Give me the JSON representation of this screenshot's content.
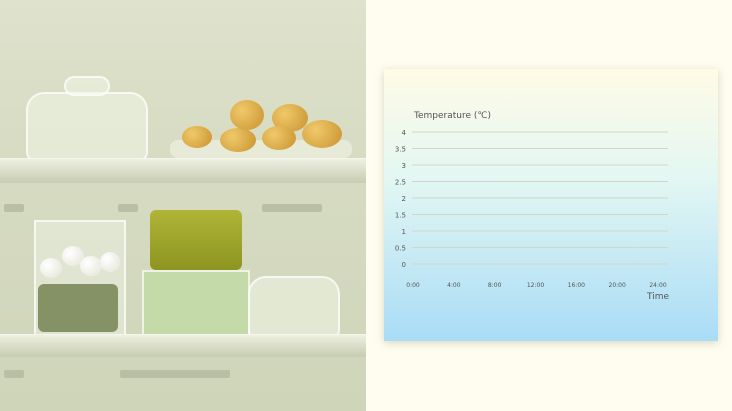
{
  "photo": {
    "description_label": ""
  },
  "chart_data": {
    "type": "line",
    "ylabel": "Temperature (℃)",
    "xlabel": "Time",
    "yticks": [
      "0",
      "0.5",
      "1",
      "1.5",
      "2",
      "2.5",
      "3",
      "3.5",
      "4"
    ],
    "xticks": [
      "0:00",
      "4:00",
      "8:00",
      "12:00",
      "16:00",
      "20:00",
      "24:00"
    ],
    "ylim": [
      0,
      4
    ],
    "xlim": [
      "0:00",
      "24:00"
    ],
    "grid": true,
    "series": []
  },
  "colors": {
    "grid": "#d6d6c0",
    "card_top": "#fffbe6",
    "card_bottom": "#a9dcf6"
  }
}
